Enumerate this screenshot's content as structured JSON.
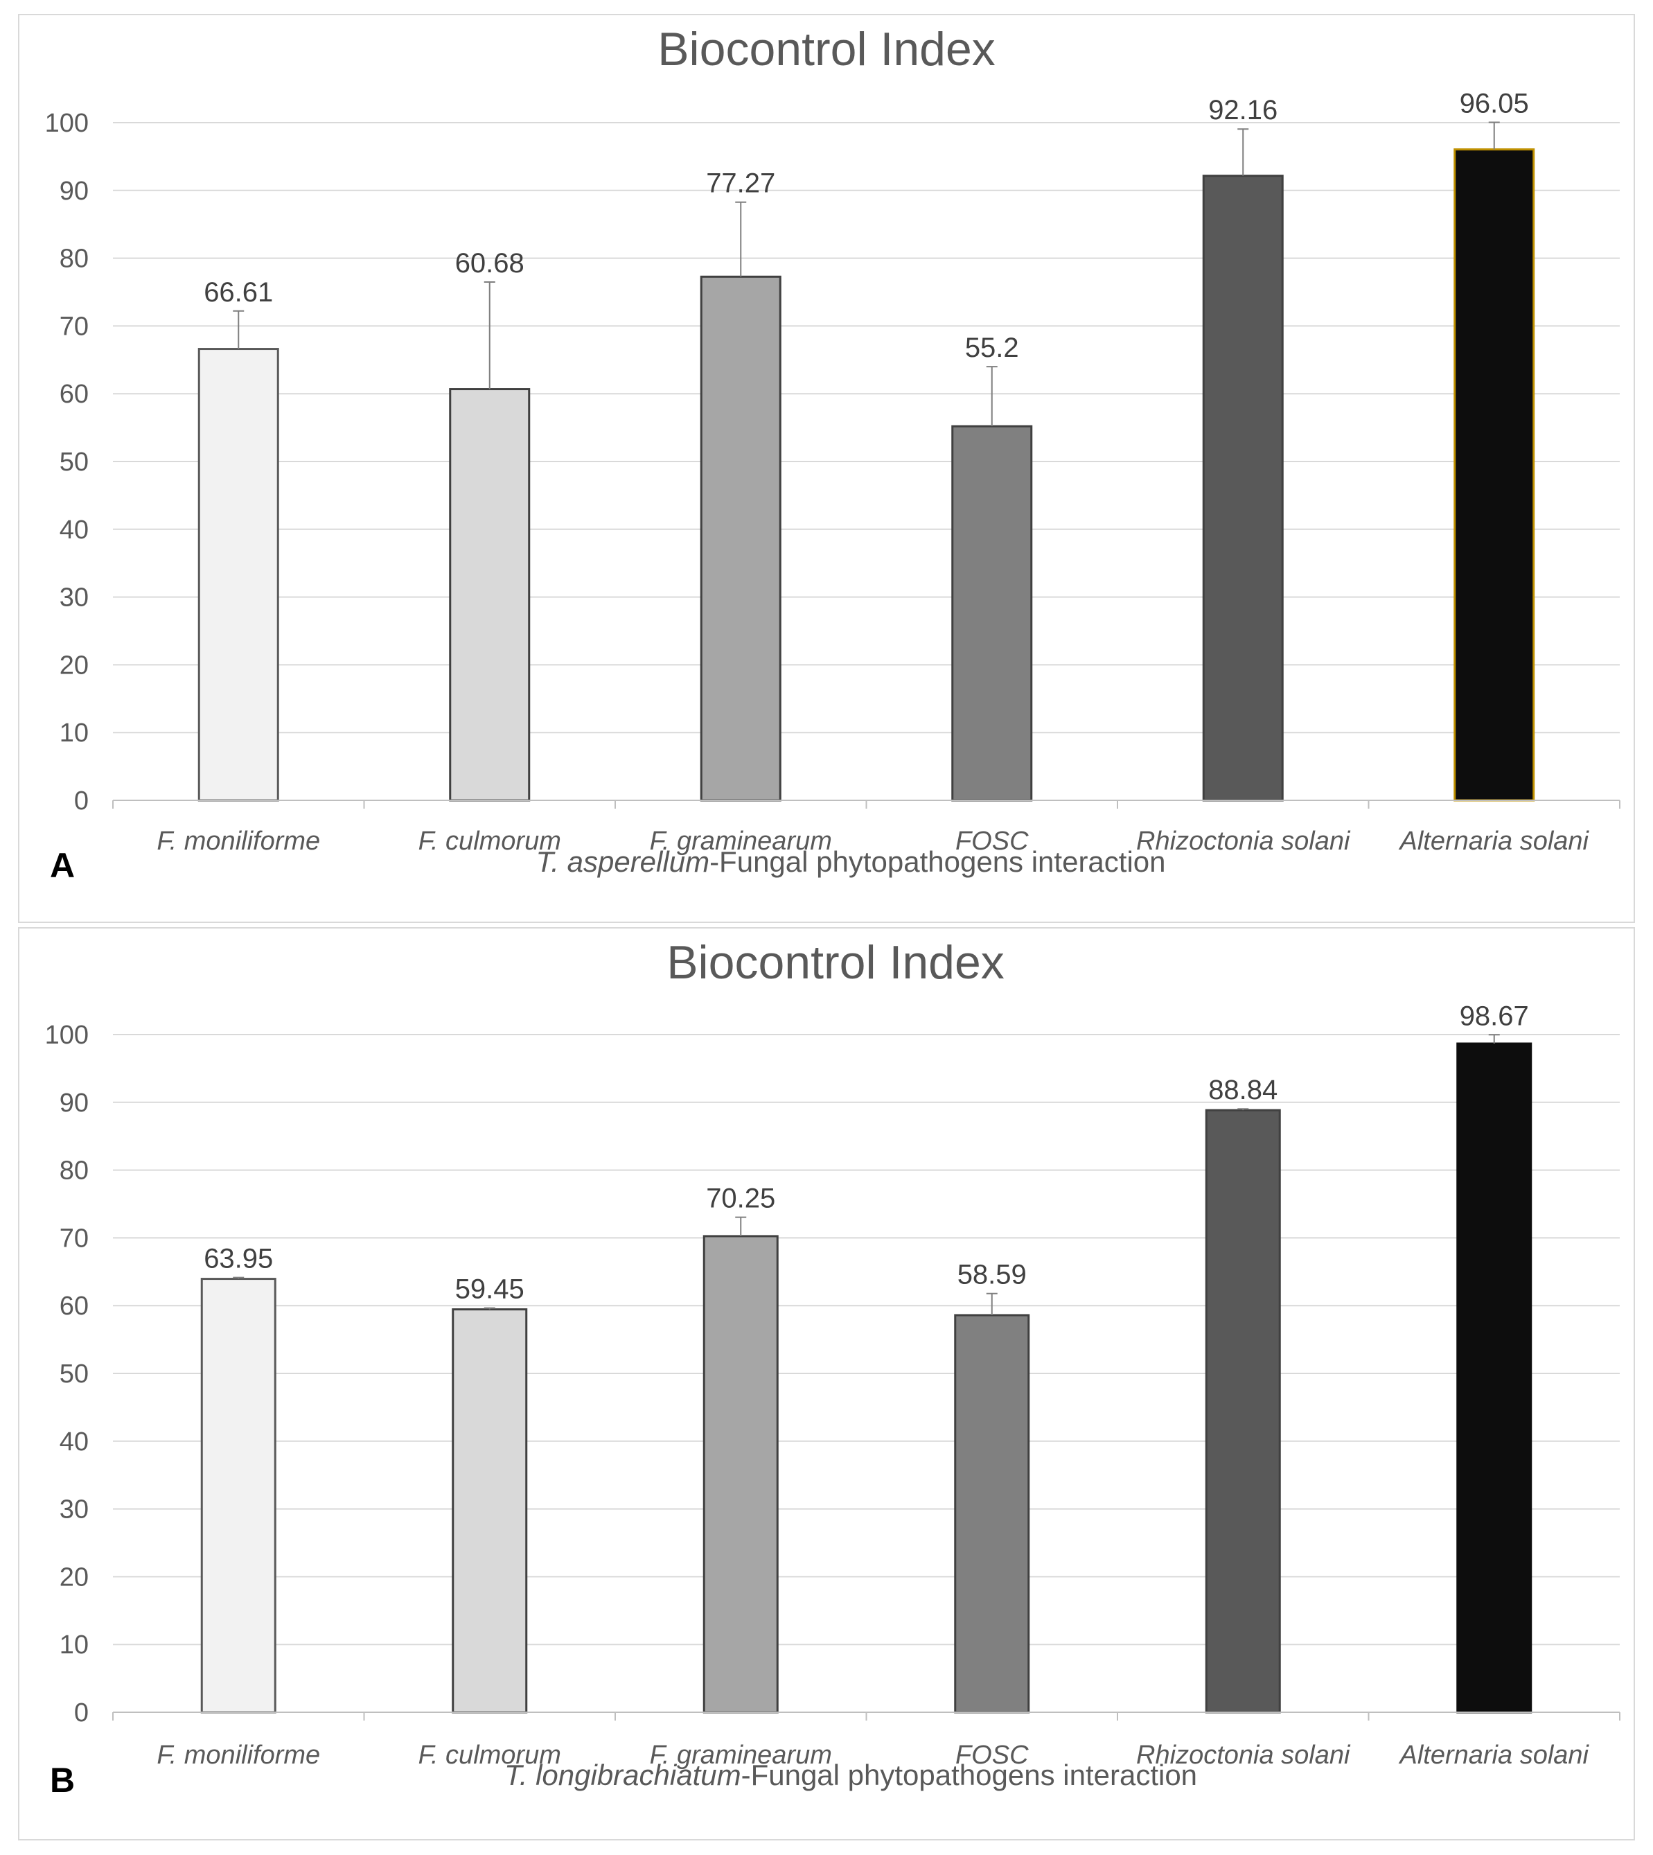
{
  "chart_data": [
    {
      "type": "bar",
      "panel_label": "A",
      "title": "Biocontrol Index",
      "xlabel_italic": "T. asperellum",
      "xlabel_rest": "-Fungal phytopathogens interaction",
      "ylabel": "",
      "ylim": [
        0,
        100
      ],
      "yticks": [
        0,
        10,
        20,
        30,
        40,
        50,
        60,
        70,
        80,
        90,
        100
      ],
      "grid": true,
      "categories": [
        "F. moniliforme",
        "F. culmorum",
        "F. graminearum",
        "FOSC",
        "Rhizoctonia solani",
        "Alternaria solani"
      ],
      "values": [
        66.61,
        60.68,
        77.27,
        55.2,
        92.16,
        96.05
      ],
      "value_labels": [
        "66.61",
        "60.68",
        "77.27",
        "55.2",
        "92.16",
        "96.05"
      ],
      "error_upper": [
        5.6,
        15.8,
        11.0,
        8.8,
        6.9,
        4.0
      ],
      "bar_fill": [
        "#f2f2f2",
        "#d9d9d9",
        "#a6a6a6",
        "#808080",
        "#595959",
        "#0d0d0d"
      ],
      "bar_stroke": [
        "#595959",
        "#404040",
        "#404040",
        "#404040",
        "#404040",
        "#bf9000"
      ]
    },
    {
      "type": "bar",
      "panel_label": "B",
      "title": "Biocontrol Index",
      "xlabel_italic": "T. longibrachiatum",
      "xlabel_rest": "-Fungal phytopathogens interaction",
      "ylabel": "",
      "ylim": [
        0,
        100
      ],
      "yticks": [
        0,
        10,
        20,
        30,
        40,
        50,
        60,
        70,
        80,
        90,
        100
      ],
      "grid": true,
      "categories": [
        "F. moniliforme",
        "F. culmorum",
        "F. graminearum",
        "FOSC",
        "Rhizoctonia solani",
        "Alternaria solani"
      ],
      "values": [
        63.95,
        59.45,
        70.25,
        58.59,
        88.84,
        98.67
      ],
      "value_labels": [
        "63.95",
        "59.45",
        "70.25",
        "58.59",
        "88.84",
        "98.67"
      ],
      "error_upper": [
        0.2,
        0.2,
        2.8,
        3.2,
        0.2,
        1.3
      ],
      "bar_fill": [
        "#f2f2f2",
        "#d9d9d9",
        "#a6a6a6",
        "#808080",
        "#595959",
        "#0d0d0d"
      ],
      "bar_stroke": [
        "#595959",
        "#404040",
        "#404040",
        "#404040",
        "#404040",
        "#0d0d0d"
      ]
    }
  ]
}
